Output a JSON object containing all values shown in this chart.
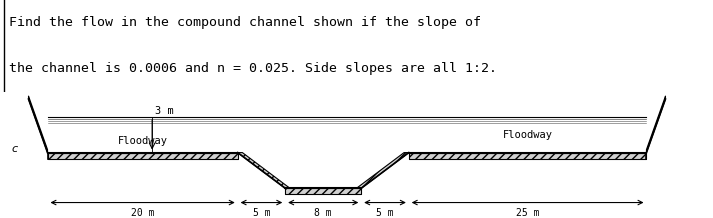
{
  "title_line1": "Find the flow in the compound channel shown if the slope of",
  "title_line2": "the channel is 0.0006 and n = 0.025. Side slopes are all 1:2.",
  "title_fontsize": 9.5,
  "title_font": "monospace",
  "bg_color": "#ffffff",
  "line_color": "#000000",
  "dim_20": "20 m",
  "dim_5a": "5 m",
  "dim_8": "8 m",
  "dim_5b": "5 m",
  "dim_25": "25 m",
  "dim_3": "3 m",
  "label_floodway_left": "Floodway",
  "label_floodway_right": "Floodway",
  "label_c": "c"
}
